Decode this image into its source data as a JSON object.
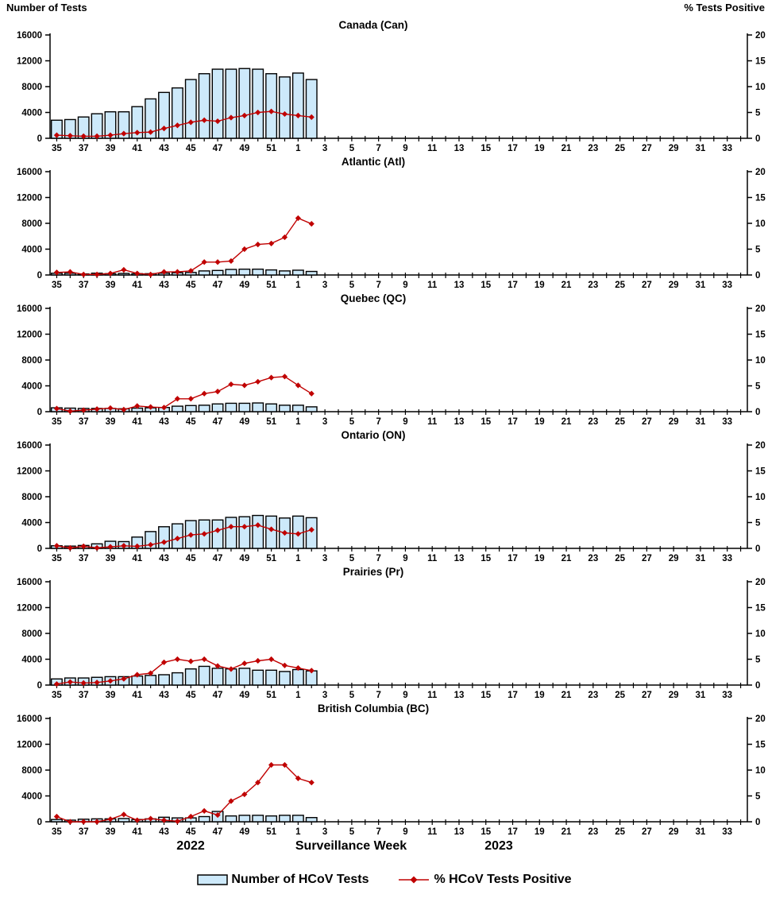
{
  "page": {
    "left_axis_header": "Number of Tests",
    "right_axis_header": "% Tests Positive",
    "year_left": "2022",
    "x_axis_title": "Surveillance Week",
    "year_right": "2023"
  },
  "legend": {
    "bar_label": "Number of HCoV Tests",
    "line_label": "% HCoV Tests Positive"
  },
  "colors": {
    "bar_fill": "#CDE9FA",
    "bar_stroke": "#000000",
    "line_color": "#C00000",
    "axis_color": "#000000"
  },
  "chart_data": {
    "type": "bar",
    "subtype": "combo-bar-line-small-multiples",
    "x_categories": [
      "35",
      "36",
      "37",
      "38",
      "39",
      "40",
      "41",
      "42",
      "43",
      "44",
      "45",
      "46",
      "47",
      "48",
      "49",
      "50",
      "51",
      "52",
      "1",
      "2",
      "3",
      "4",
      "5",
      "6",
      "7",
      "8",
      "9",
      "10",
      "11",
      "12",
      "13",
      "14",
      "15",
      "16",
      "17",
      "18",
      "19",
      "20",
      "21",
      "22",
      "23",
      "24",
      "25",
      "26",
      "27",
      "28",
      "29",
      "30",
      "31",
      "32",
      "33",
      "34"
    ],
    "x_label_every": 2,
    "left_axis": {
      "title": "Number of Tests",
      "range": [
        0,
        16000
      ],
      "ticks": [
        0,
        4000,
        8000,
        12000,
        16000
      ]
    },
    "right_axis": {
      "title": "% Tests Positive",
      "range": [
        0,
        20
      ],
      "ticks": [
        0,
        5,
        10,
        15,
        20
      ]
    },
    "data_weeks": [
      "35",
      "36",
      "37",
      "38",
      "39",
      "40",
      "41",
      "42",
      "43",
      "44",
      "45",
      "46",
      "47",
      "48",
      "49",
      "50",
      "51",
      "52",
      "1",
      "2"
    ],
    "panels": [
      {
        "title": "Canada (Can)",
        "bars_name": "Number of HCoV Tests",
        "line_name": "% HCoV Tests Positive",
        "tests": [
          2800,
          2900,
          3300,
          3800,
          4100,
          4100,
          4900,
          6100,
          7100,
          7800,
          9100,
          10000,
          10700,
          10700,
          10800,
          10700,
          10000,
          9500,
          10100,
          9100
        ],
        "pct_positive": [
          0.6,
          0.5,
          0.4,
          0.4,
          0.6,
          0.9,
          1.1,
          1.2,
          1.9,
          2.5,
          3.1,
          3.5,
          3.3,
          4.0,
          4.4,
          5.0,
          5.2,
          4.7,
          4.4,
          4.1
        ]
      },
      {
        "title": "Atlantic (Atl)",
        "bars_name": "Number of HCoV Tests",
        "line_name": "% HCoV Tests Positive",
        "tests": [
          270,
          270,
          160,
          280,
          200,
          240,
          200,
          200,
          280,
          350,
          390,
          630,
          700,
          860,
          900,
          900,
          780,
          630,
          740,
          550
        ],
        "pct_positive": [
          0.5,
          0.6,
          0.1,
          0.1,
          0.3,
          1.0,
          0.3,
          0.1,
          0.6,
          0.6,
          0.8,
          2.5,
          2.5,
          2.7,
          5.0,
          5.9,
          6.1,
          7.3,
          11.0,
          9.9
        ]
      },
      {
        "title": "Quebec (QC)",
        "bars_name": "Number of HCoV Tests",
        "line_name": "% HCoV Tests Positive",
        "tests": [
          600,
          550,
          500,
          500,
          500,
          450,
          550,
          600,
          650,
          850,
          950,
          1000,
          1200,
          1300,
          1300,
          1350,
          1200,
          1000,
          1000,
          750
        ],
        "pct_positive": [
          0.6,
          0.1,
          0.3,
          0.5,
          0.7,
          0.4,
          1.1,
          0.9,
          0.8,
          2.5,
          2.5,
          3.5,
          3.9,
          5.3,
          5.1,
          5.8,
          6.6,
          6.8,
          5.1,
          3.5
        ]
      },
      {
        "title": "Ontario (ON)",
        "bars_name": "Number of HCoV Tests",
        "line_name": "% HCoV Tests Positive",
        "tests": [
          400,
          350,
          450,
          700,
          1100,
          1050,
          1750,
          2600,
          3350,
          3800,
          4300,
          4400,
          4400,
          4800,
          4900,
          5100,
          5000,
          4700,
          5000,
          4750
        ],
        "pct_positive": [
          0.5,
          0.1,
          0.4,
          0.1,
          0.3,
          0.5,
          0.4,
          0.7,
          1.2,
          1.9,
          2.6,
          2.8,
          3.5,
          4.2,
          4.2,
          4.5,
          3.7,
          3.0,
          2.8,
          3.6
        ]
      },
      {
        "title": "Prairies (Pr)",
        "bars_name": "Number of HCoV Tests",
        "line_name": "% HCoV Tests Positive",
        "tests": [
          950,
          1100,
          1100,
          1200,
          1300,
          1300,
          1400,
          1500,
          1600,
          1900,
          2500,
          2900,
          2600,
          2500,
          2600,
          2300,
          2300,
          2100,
          2400,
          2200
        ],
        "pct_positive": [
          0.2,
          0.6,
          0.4,
          0.5,
          0.8,
          1.2,
          2.0,
          2.3,
          4.4,
          5.0,
          4.6,
          5.0,
          3.7,
          3.1,
          4.2,
          4.7,
          5.0,
          3.8,
          3.3,
          2.8
        ]
      },
      {
        "title": "British Columbia (BC)",
        "bars_name": "Number of HCoV Tests",
        "line_name": "% HCoV Tests Positive",
        "tests": [
          350,
          250,
          400,
          450,
          450,
          500,
          350,
          450,
          700,
          600,
          600,
          800,
          1600,
          900,
          1000,
          1000,
          900,
          1000,
          1000,
          650
        ],
        "pct_positive": [
          1.0,
          0.0,
          0.0,
          0.0,
          0.5,
          1.4,
          0.3,
          0.6,
          0.3,
          0.1,
          1.0,
          2.1,
          1.3,
          4.0,
          5.3,
          7.6,
          11.0,
          11.0,
          8.4,
          7.6
        ]
      }
    ]
  }
}
